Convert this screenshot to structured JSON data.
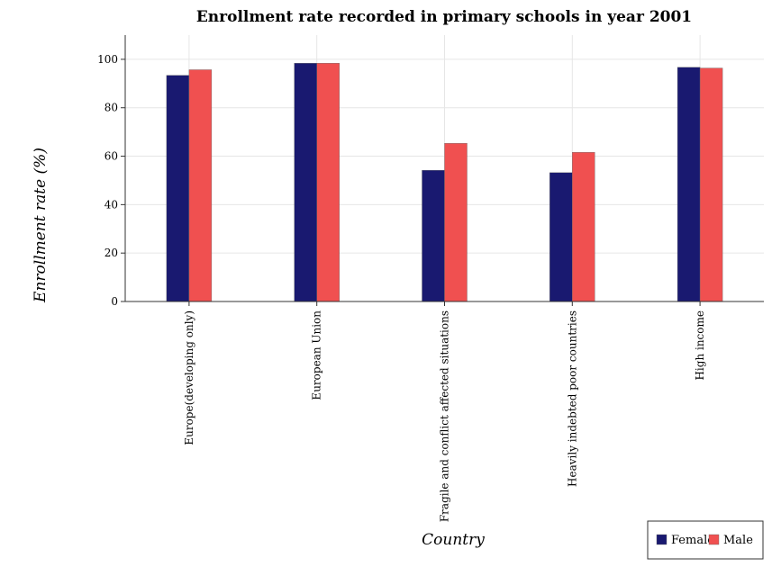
{
  "chart_data": {
    "type": "bar",
    "title": "Enrollment rate recorded in primary schools in year 2001",
    "xlabel": "Country",
    "ylabel": "Enrollment rate (%)",
    "ylim": [
      0,
      110
    ],
    "yticks": [
      0,
      20,
      40,
      60,
      80,
      100
    ],
    "grid": true,
    "legend_position": "bottom-right",
    "categories": [
      "Europe(developing only)",
      "European Union",
      "Fragile and conflict affected situations",
      "Heavily indebted poor countries",
      "High income"
    ],
    "series": [
      {
        "name": "Female",
        "color": "#191970",
        "values": [
          93.4,
          98.4,
          54.2,
          53.2,
          96.7
        ]
      },
      {
        "name": "Male",
        "color": "#f05050",
        "values": [
          95.7,
          98.4,
          65.3,
          61.6,
          96.4
        ]
      }
    ]
  }
}
